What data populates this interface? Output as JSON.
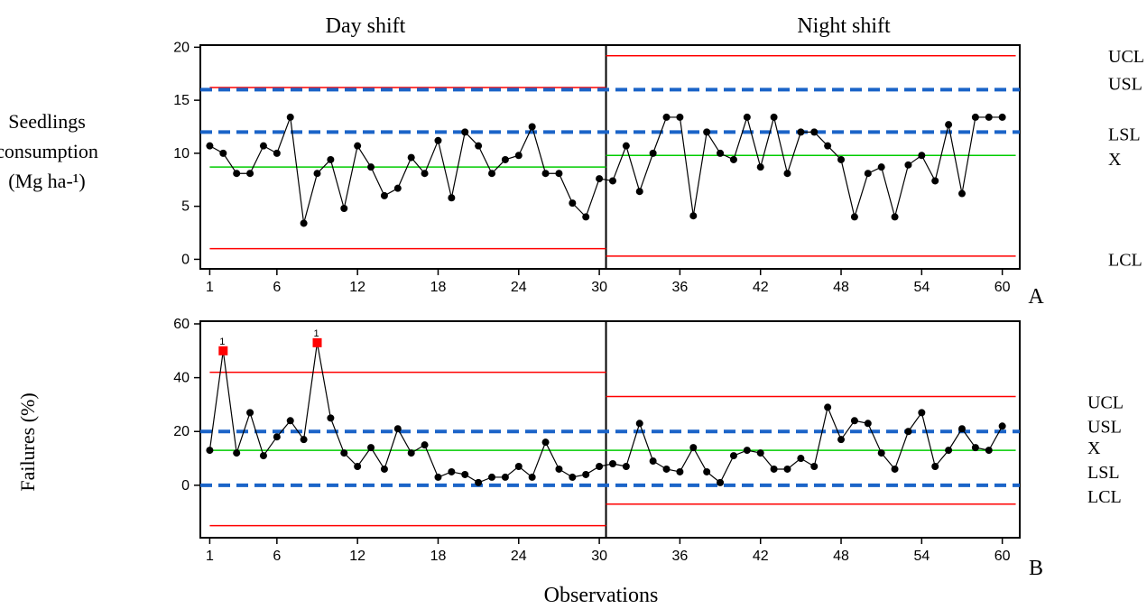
{
  "figure": {
    "header_left": "Day shift",
    "header_right": "Night shift",
    "xlabel": "Observations"
  },
  "chart_data": [
    {
      "type": "line",
      "panel_label": "A",
      "ylabel_line1": "Seedlings",
      "ylabel_line2": "consumption",
      "ylabel_line3": "(Mg ha-¹)",
      "xlim": [
        0.3,
        61.3
      ],
      "ylim": [
        -0.9,
        20.2
      ],
      "xticks": [
        1,
        6,
        12,
        18,
        24,
        30,
        36,
        42,
        48,
        54,
        60
      ],
      "yticks": [
        0,
        5,
        10,
        15,
        20
      ],
      "grid": false,
      "phase_divider_x": 30.5,
      "x": [
        1,
        2,
        3,
        4,
        5,
        6,
        7,
        8,
        9,
        10,
        11,
        12,
        13,
        14,
        15,
        16,
        17,
        18,
        19,
        20,
        21,
        22,
        23,
        24,
        25,
        26,
        27,
        28,
        29,
        30,
        31,
        32,
        33,
        34,
        35,
        36,
        37,
        38,
        39,
        40,
        41,
        42,
        43,
        44,
        45,
        46,
        47,
        48,
        49,
        50,
        51,
        52,
        53,
        54,
        55,
        56,
        57,
        58,
        59,
        60
      ],
      "series": [
        {
          "values": [
            10.7,
            10.0,
            8.1,
            8.1,
            10.7,
            10.0,
            13.4,
            3.4,
            8.1,
            9.4,
            4.8,
            10.7,
            8.7,
            6.0,
            6.7,
            9.6,
            8.1,
            11.2,
            5.8,
            12.0,
            10.7,
            8.1,
            9.4,
            9.8,
            12.5,
            8.1,
            8.1,
            5.3,
            4.0,
            7.6,
            7.4,
            10.7,
            6.4,
            10.0,
            13.4,
            13.4,
            4.1,
            12.0,
            10.0,
            9.4,
            13.4,
            8.7,
            13.4,
            8.1,
            12.0,
            12.0,
            10.7,
            9.4,
            4.0,
            8.1,
            8.7,
            4.0,
            8.9,
            9.8,
            7.4,
            12.7,
            6.2,
            13.4,
            13.4,
            13.4
          ],
          "color": "#000000"
        }
      ],
      "control_limits": [
        {
          "phase": "Day shift",
          "x_range": [
            1,
            30.5
          ],
          "UCL": 16.2,
          "mean": 8.7,
          "LCL": 1.0
        },
        {
          "phase": "Night shift",
          "x_range": [
            30.5,
            61
          ],
          "UCL": 19.2,
          "mean": 9.8,
          "LCL": 0.3
        }
      ],
      "spec_limits": {
        "USL": 16.0,
        "LSL": 12.0
      },
      "right_labels": [
        {
          "text": "UCL",
          "y": 19.2
        },
        {
          "text": "USL",
          "y": 16.6
        },
        {
          "text": "LSL",
          "y": 11.8
        },
        {
          "text": "X",
          "y": 9.5
        },
        {
          "text": "LCL",
          "y": 0.0
        }
      ],
      "colors": {
        "data": "#000000",
        "control_limit": "#ff0000",
        "mean": "#00cc00",
        "spec_limit": "#1b64c8",
        "flagged": "#ff0000"
      }
    },
    {
      "type": "line",
      "panel_label": "B",
      "ylabel": "Failures (%)",
      "xlim": [
        0.3,
        61.3
      ],
      "ylim": [
        -19.5,
        61.0
      ],
      "xticks": [
        1,
        6,
        12,
        18,
        24,
        30,
        36,
        42,
        48,
        54,
        60
      ],
      "yticks": [
        0,
        20,
        40,
        60
      ],
      "grid": false,
      "phase_divider_x": 30.5,
      "x": [
        1,
        2,
        3,
        4,
        5,
        6,
        7,
        8,
        9,
        10,
        11,
        12,
        13,
        14,
        15,
        16,
        17,
        18,
        19,
        20,
        21,
        22,
        23,
        24,
        25,
        26,
        27,
        28,
        29,
        30,
        31,
        32,
        33,
        34,
        35,
        36,
        37,
        38,
        39,
        40,
        41,
        42,
        43,
        44,
        45,
        46,
        47,
        48,
        49,
        50,
        51,
        52,
        53,
        54,
        55,
        56,
        57,
        58,
        59,
        60
      ],
      "series": [
        {
          "values": [
            13,
            50,
            12,
            27,
            11,
            18,
            24,
            17,
            53,
            25,
            12,
            7,
            14,
            6,
            21,
            12,
            15,
            3,
            5,
            4,
            1,
            3,
            3,
            7,
            3,
            16,
            6,
            3,
            4,
            7,
            8,
            7,
            23,
            9,
            6,
            5,
            14,
            5,
            1,
            11,
            13,
            12,
            6,
            6,
            10,
            7,
            29,
            17,
            24,
            23,
            12,
            6,
            20,
            27,
            7,
            13,
            21,
            14,
            13,
            22
          ],
          "color": "#000000"
        }
      ],
      "flagged_points": [
        {
          "x": 2,
          "y": 50,
          "label": "1"
        },
        {
          "x": 9,
          "y": 53,
          "label": "1"
        }
      ],
      "control_limits": [
        {
          "phase": "Day shift",
          "x_range": [
            1,
            30.5
          ],
          "UCL": 42,
          "mean": 13,
          "LCL": -15
        },
        {
          "phase": "Night shift",
          "x_range": [
            30.5,
            61
          ],
          "UCL": 33,
          "mean": 13,
          "LCL": -7
        }
      ],
      "spec_limits": {
        "USL": 20,
        "LSL": 0
      },
      "right_labels": [
        {
          "text": "UCL",
          "y": 31
        },
        {
          "text": "USL",
          "y": 22
        },
        {
          "text": "X",
          "y": 14
        },
        {
          "text": "LSL",
          "y": 5
        },
        {
          "text": "LCL",
          "y": -4
        }
      ],
      "colors": {
        "data": "#000000",
        "control_limit": "#ff0000",
        "mean": "#00cc00",
        "spec_limit": "#1b64c8",
        "flagged": "#ff0000"
      }
    }
  ]
}
